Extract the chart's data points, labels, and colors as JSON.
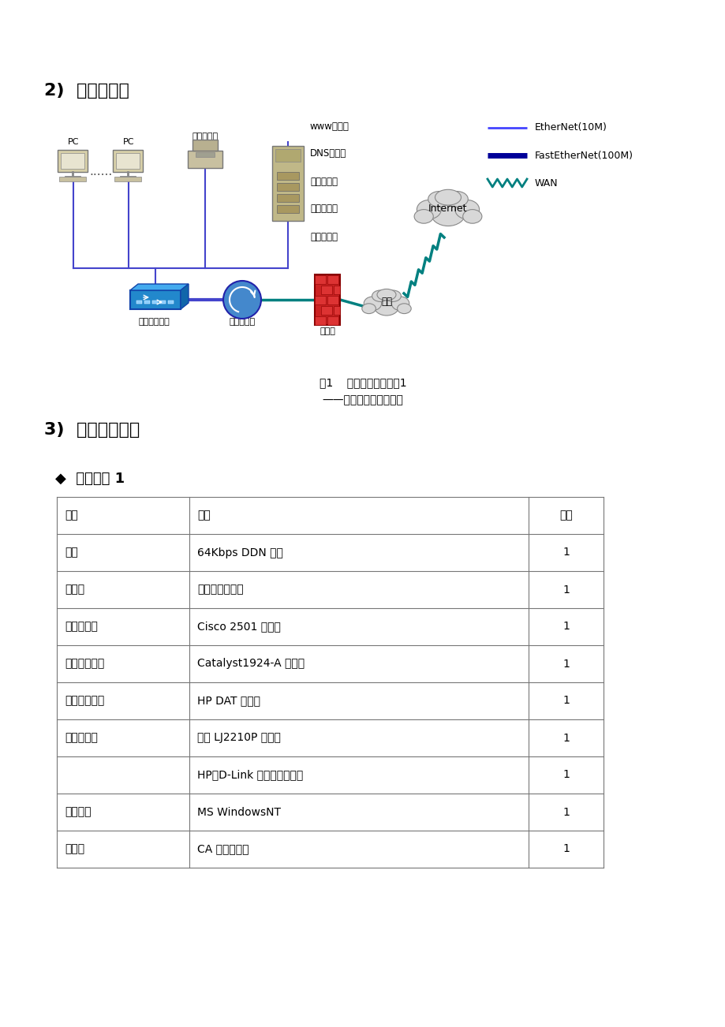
{
  "title_section2": "2)  网络方案图",
  "title_section3": "3)  推荐平台方案",
  "fig_caption1": "图1    政府上网网络方案1",
  "fig_caption2": "——单网段单服务器方案",
  "platform_title": "◆  平台方案 1",
  "table_headers": [
    "功能",
    "产品",
    "数量"
  ],
  "table_rows": [
    [
      "专线",
      "64Kbps DDN 专线",
      "1"
    ],
    [
      "服务器",
      "联想万全服务器",
      "1"
    ],
    [
      "接入路由器",
      "Cisco 2501 路由器",
      "1"
    ],
    [
      "工作组互换机",
      "Catalyst1924-A 互换机",
      "1"
    ],
    [
      "数据备份设备",
      "HP DAT 磁带机",
      "1"
    ],
    [
      "网络打印机",
      "联想 LJ2210P 打印机",
      "1"
    ],
    [
      "",
      "HP、D-Link 网络打印服务器",
      "1"
    ],
    [
      "软件平台",
      "MS WindowsNT",
      "1"
    ],
    [
      "防火墙",
      "CA 软件防火墙",
      "1"
    ]
  ],
  "legend_items": [
    {
      "label": "EtherNet(10M)",
      "color": "#4444ff",
      "style": "solid",
      "lw": 2
    },
    {
      "label": "FastEtherNet(100M)",
      "color": "#000099",
      "style": "solid",
      "lw": 5
    },
    {
      "label": "WAN",
      "color": "#008080",
      "style": "zigzag",
      "lw": 2
    }
  ],
  "server_labels": [
    "www服务器",
    "DNS服务器",
    "邮件服务器",
    "应用服务器",
    "文件服务器"
  ],
  "device_labels": [
    "PC",
    "PC",
    "网络打印机",
    "工作组互换机",
    "接入路由器",
    "防火墙",
    "Internet",
    "专线"
  ],
  "background_color": "#ffffff",
  "text_color": "#000000",
  "table_border_color": "#777777",
  "line_blue": "#4444cc",
  "line_green": "#008080"
}
